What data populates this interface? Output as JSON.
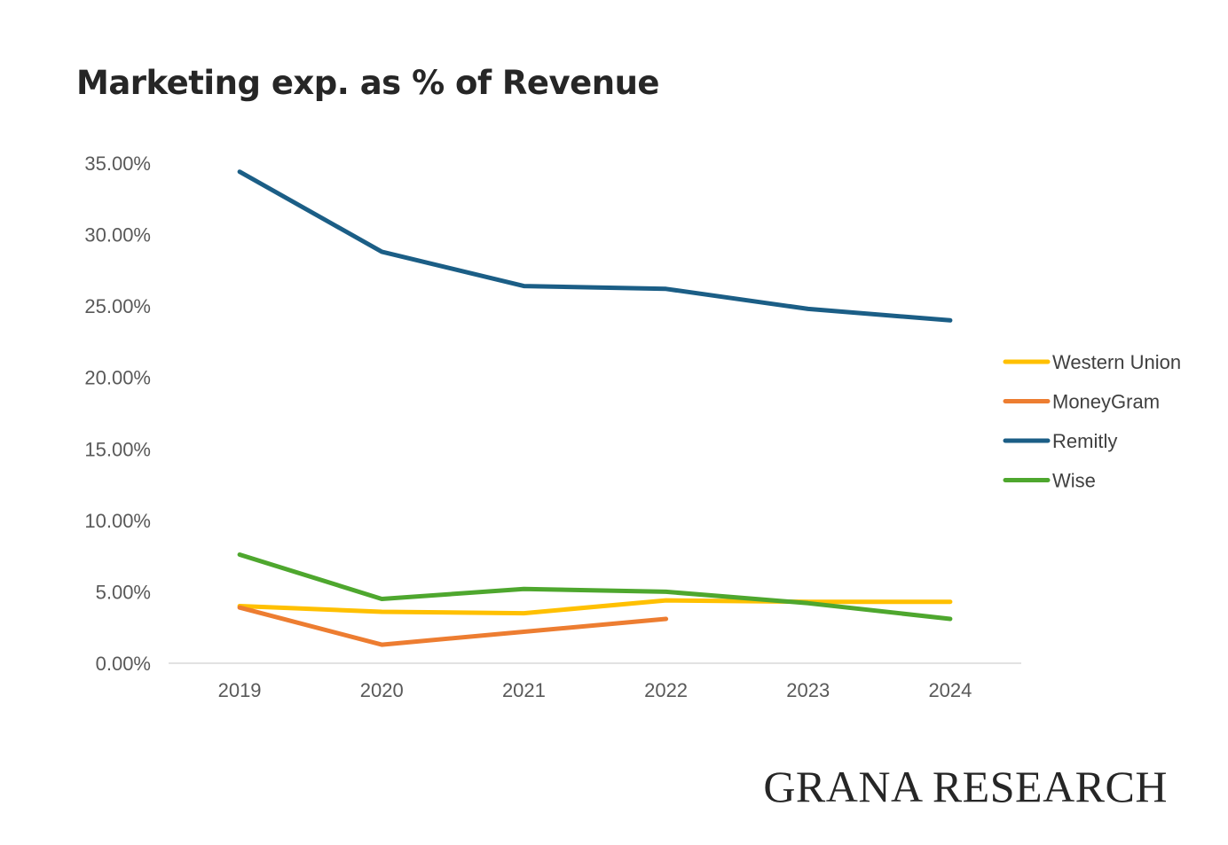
{
  "chart_data": {
    "type": "line",
    "title": "Marketing exp. as % of Revenue",
    "xlabel": "",
    "ylabel": "",
    "categories": [
      "2019",
      "2020",
      "2021",
      "2022",
      "2023",
      "2024"
    ],
    "ylim": [
      0,
      35
    ],
    "y_ticks": [
      0,
      5,
      10,
      15,
      20,
      25,
      30,
      35
    ],
    "y_tick_labels": [
      "0.00%",
      "5.00%",
      "10.00%",
      "15.00%",
      "20.00%",
      "25.00%",
      "30.00%",
      "35.00%"
    ],
    "grid": false,
    "legend_position": "right",
    "series": [
      {
        "name": "Western Union",
        "color": "#FFC000",
        "values": [
          4.0,
          3.6,
          3.5,
          4.4,
          4.3,
          4.3
        ]
      },
      {
        "name": "MoneyGram",
        "color": "#ED7D31",
        "values": [
          3.9,
          1.3,
          2.2,
          3.1,
          null,
          null
        ]
      },
      {
        "name": "Remitly",
        "color": "#1B5E86",
        "values": [
          34.4,
          28.8,
          26.4,
          26.2,
          24.8,
          24.0
        ]
      },
      {
        "name": "Wise",
        "color": "#4EA72E",
        "values": [
          7.6,
          4.5,
          5.2,
          5.0,
          4.2,
          3.1
        ]
      }
    ]
  },
  "watermark": "GRANA RESEARCH"
}
